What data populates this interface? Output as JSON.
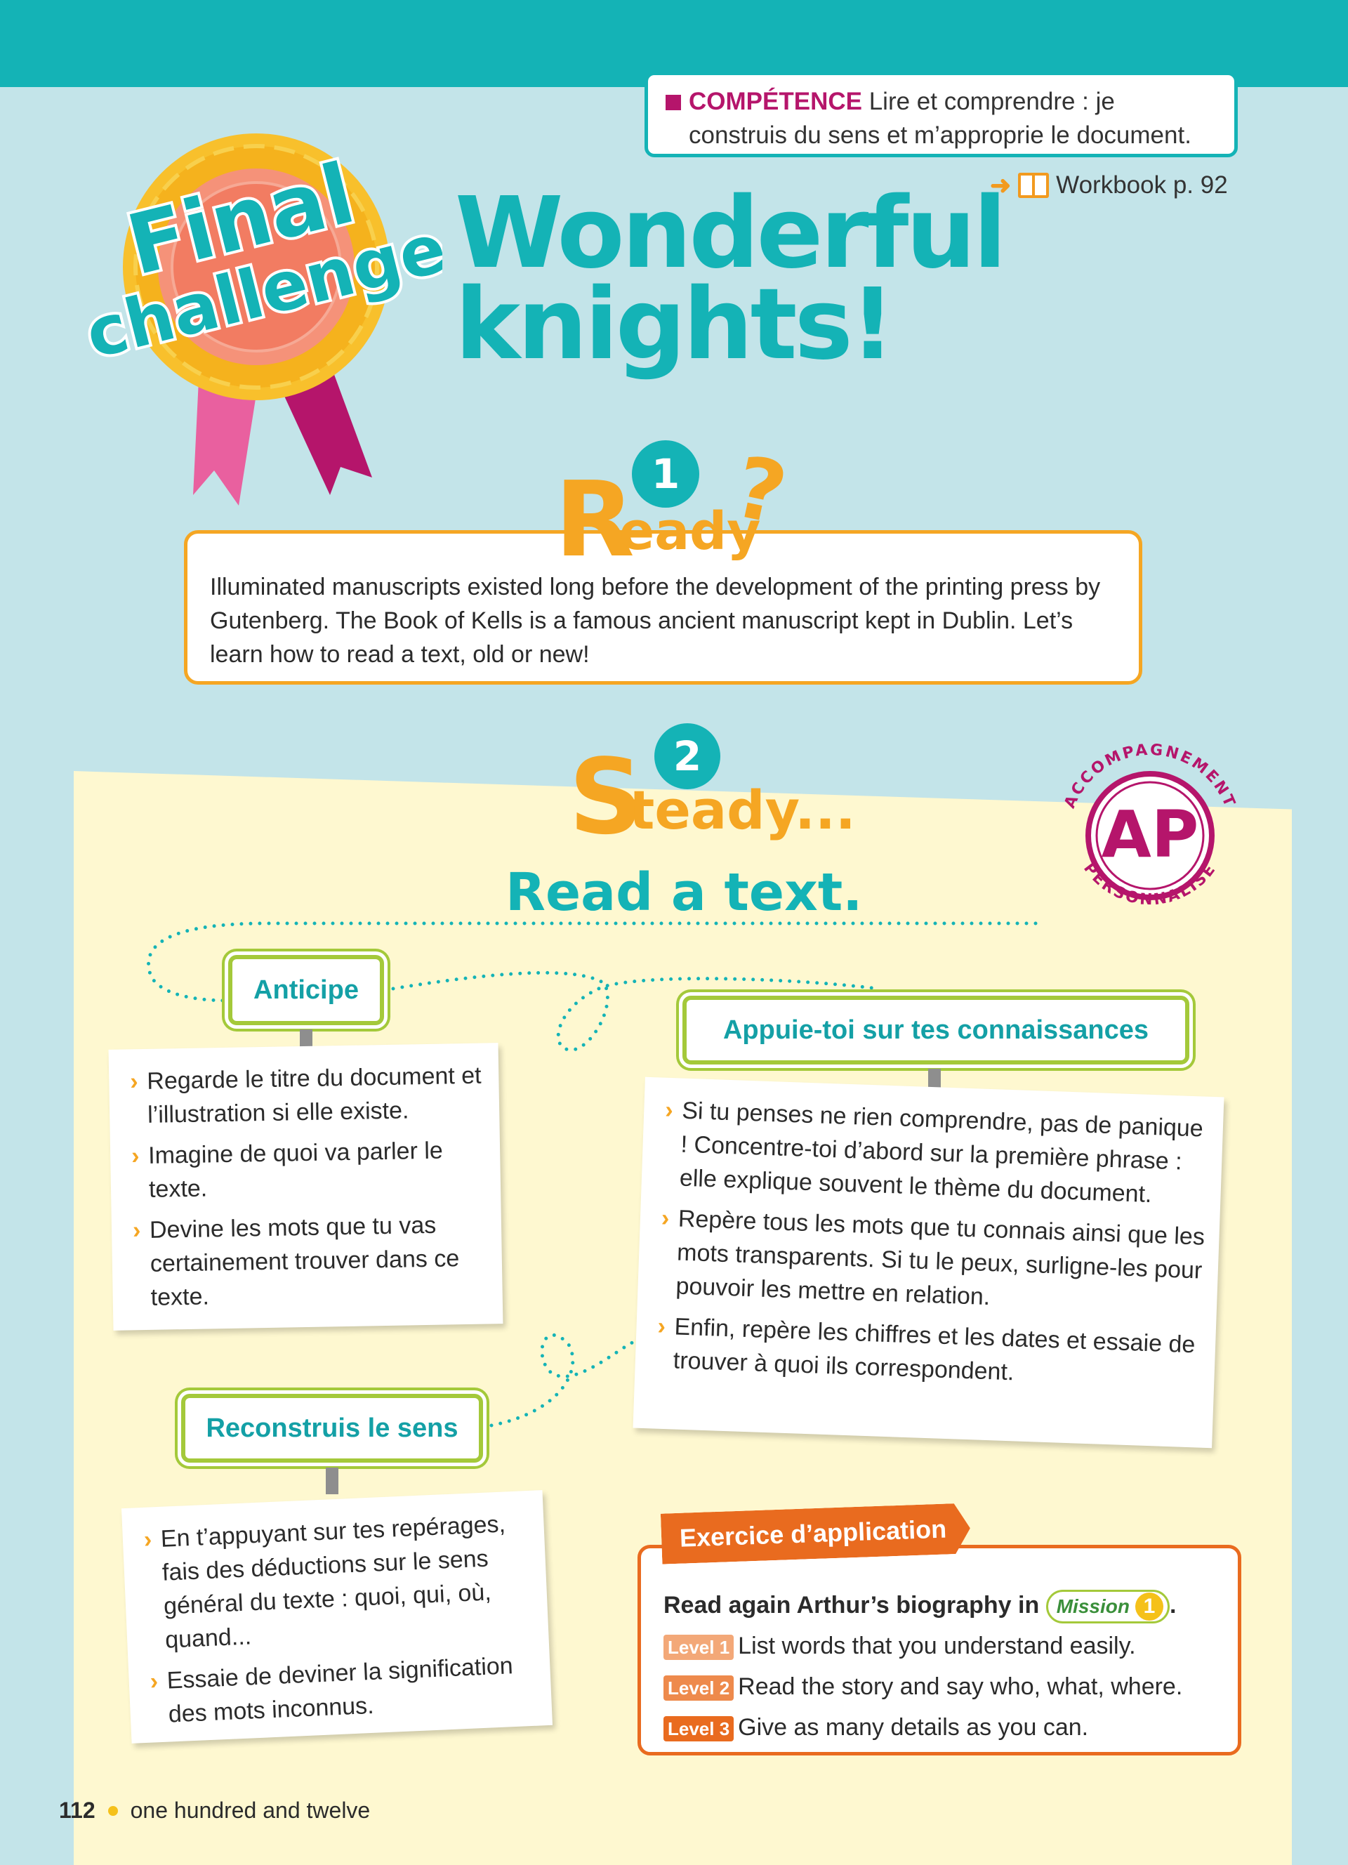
{
  "competence": {
    "keyword": "COMPÉTENCE",
    "text": "Lire et comprendre : je construis du sens et m’approprie le document."
  },
  "workbook": {
    "label": "Workbook p. 92",
    "icon": "book-icon"
  },
  "badge": {
    "line1": "Final",
    "line2": "challenge"
  },
  "title": {
    "line1": "Wonderful",
    "line2": "knights!"
  },
  "ready": {
    "number": "1",
    "word_initial": "R",
    "word_rest": "eady",
    "punct": "?",
    "text": "Illuminated manuscripts existed long before the development of the printing press by Gutenberg. The Book of Kells is a famous ancient manuscript kept in Dublin. Let’s learn how to read a text, old or new!"
  },
  "steady": {
    "number": "2",
    "word_initial": "S",
    "word_rest": "teady...",
    "subtitle": "Read a text."
  },
  "ap_seal": {
    "letters": "AP",
    "top_text": "ACCOMPAGNEMENT",
    "bottom_text": "PERSONNALISÉ"
  },
  "tags": {
    "anticipe": "Anticipe",
    "appuie": "Appuie-toi sur tes connaissances",
    "reconstruis": "Reconstruis le sens"
  },
  "notes": {
    "anticipe": [
      "Regarde le titre du document et l’illustration si elle existe.",
      "Imagine de quoi va parler le texte.",
      "Devine les mots que tu vas certainement trouver dans ce texte."
    ],
    "appuie": [
      "Si tu penses ne rien comprendre, pas de panique ! Concentre-toi d’abord sur la première phrase : elle explique souvent le thème du document.",
      "Repère tous les mots que tu connais ainsi que les mots transparents. Si tu le peux, surligne-les pour pouvoir les mettre en relation.",
      "Enfin, repère les chiffres et les dates et essaie de trouver à quoi ils correspondent."
    ],
    "reconstruis": [
      "En t’appuyant sur tes repérages, fais des déductions sur le sens général du texte : quoi, qui, où, quand...",
      "Essaie de deviner la signification des mots inconnus."
    ]
  },
  "exercise": {
    "tab": "Exercice d’application",
    "intro": "Read again Arthur’s biography in",
    "mission_label": "Mission",
    "mission_number": "1",
    "levels": [
      {
        "label": "Level 1",
        "text": "List words that you understand easily."
      },
      {
        "label": "Level 2",
        "text": "Read the story and say who, what, where."
      },
      {
        "label": "Level 3",
        "text": "Give as many details as you can."
      }
    ]
  },
  "footer": {
    "page": "112",
    "text": "one hundred and twelve"
  },
  "colors": {
    "teal": "#14b3b6",
    "magenta": "#b5156b",
    "orange": "#f5a623",
    "dark_orange": "#e96b1f",
    "green": "#a4c93a",
    "panel": "#fef8d0",
    "background": "#c3e4e9"
  }
}
